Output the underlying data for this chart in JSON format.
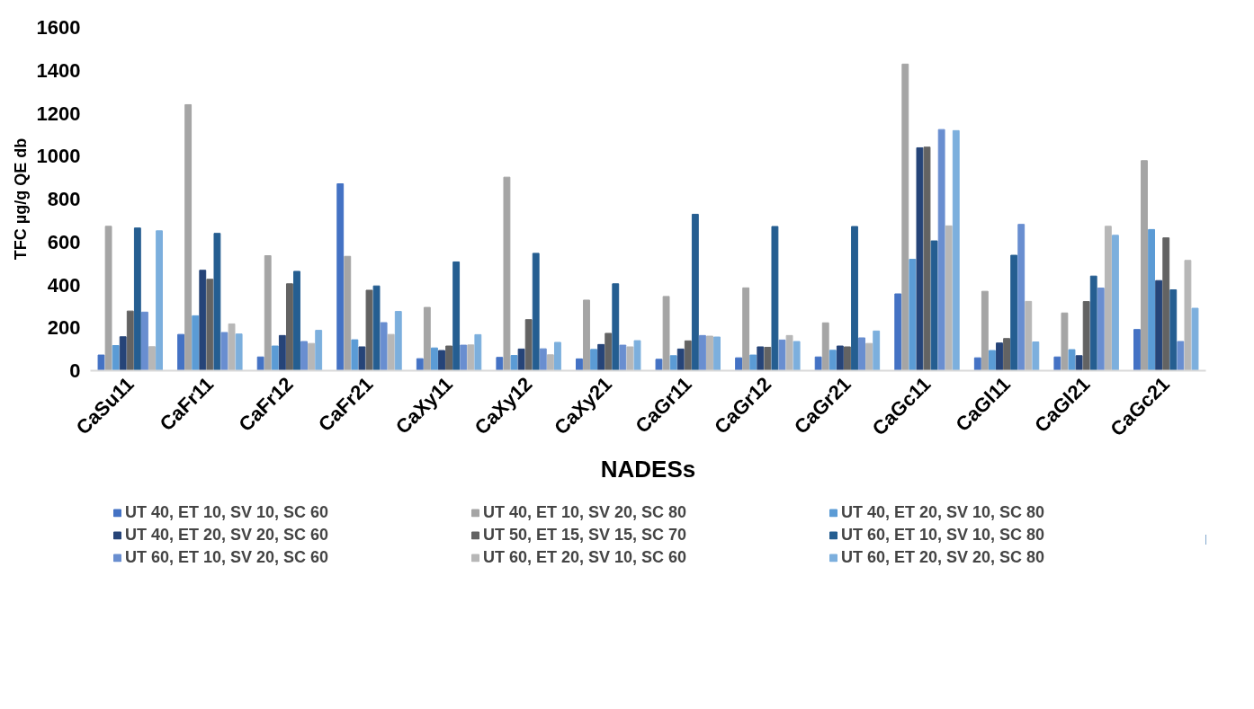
{
  "chart_data": {
    "type": "bar",
    "xlabel": "NADESs",
    "ylabel": "TFC µg/g QE db",
    "categories": [
      "CaSu11",
      "CaFr11",
      "CaFr12",
      "CaFr21",
      "CaXy11",
      "CaXy12",
      "CaXy21",
      "CaGr11",
      "CaGr12",
      "CaGr21",
      "CaGc11",
      "CaGl11",
      "CaGl21",
      "CaGc21"
    ],
    "ylim": [
      0,
      1600
    ],
    "yticks": [
      0,
      200,
      400,
      600,
      800,
      1000,
      1200,
      1400,
      1600
    ],
    "grid": false,
    "legend": "bottom",
    "series": [
      {
        "name": "UT 40, ET 10, SV 10, SC 60",
        "color": "#4472c4",
        "values": [
          73,
          169,
          64,
          871,
          56,
          62,
          55,
          53,
          60,
          64,
          358,
          60,
          64,
          192
        ]
      },
      {
        "name": "UT 40, ET 10, SV 20, SC 80",
        "color": "#a5a5a5",
        "values": [
          673,
          1240,
          536,
          533,
          295,
          902,
          329,
          346,
          386,
          223,
          1429,
          370,
          269,
          979
        ]
      },
      {
        "name": "UT 40, ET 20, SV 10, SC 80",
        "color": "#5b9bd5",
        "values": [
          117,
          256,
          115,
          144,
          106,
          71,
          99,
          70,
          73,
          95,
          519,
          94,
          98,
          658
        ]
      },
      {
        "name": "UT 40, ET 20, SV 20, SC 60",
        "color": "#264478",
        "values": [
          158,
          468,
          164,
          111,
          94,
          101,
          122,
          101,
          111,
          115,
          1039,
          129,
          70,
          420
        ]
      },
      {
        "name": "UT 50, ET 15, SV 15, SC 70",
        "color": "#636363",
        "values": [
          278,
          426,
          405,
          375,
          115,
          238,
          174,
          139,
          109,
          111,
          1042,
          150,
          322,
          619
        ]
      },
      {
        "name": "UT 60, ET 10, SV 10, SC 80",
        "color": "#255e91",
        "values": [
          665,
          640,
          463,
          395,
          507,
          547,
          405,
          729,
          672,
          672,
          605,
          538,
          441,
          377
        ]
      },
      {
        "name": "UT 60, ET 10, SV 20, SC 60",
        "color": "#698ed0",
        "values": [
          273,
          178,
          136,
          224,
          119,
          102,
          119,
          164,
          143,
          153,
          1124,
          682,
          385,
          136
        ]
      },
      {
        "name": "UT 60, ET 20, SV 10, SC 60",
        "color": "#b7b7b7",
        "values": [
          112,
          218,
          127,
          169,
          120,
          74,
          111,
          161,
          164,
          127,
          675,
          323,
          673,
          514
        ]
      },
      {
        "name": "UT 60, ET 20, SV 20, SC 80",
        "color": "#7cafdd",
        "values": [
          652,
          171,
          188,
          276,
          168,
          132,
          140,
          157,
          136,
          185,
          1119,
          134,
          631,
          291
        ]
      }
    ]
  }
}
